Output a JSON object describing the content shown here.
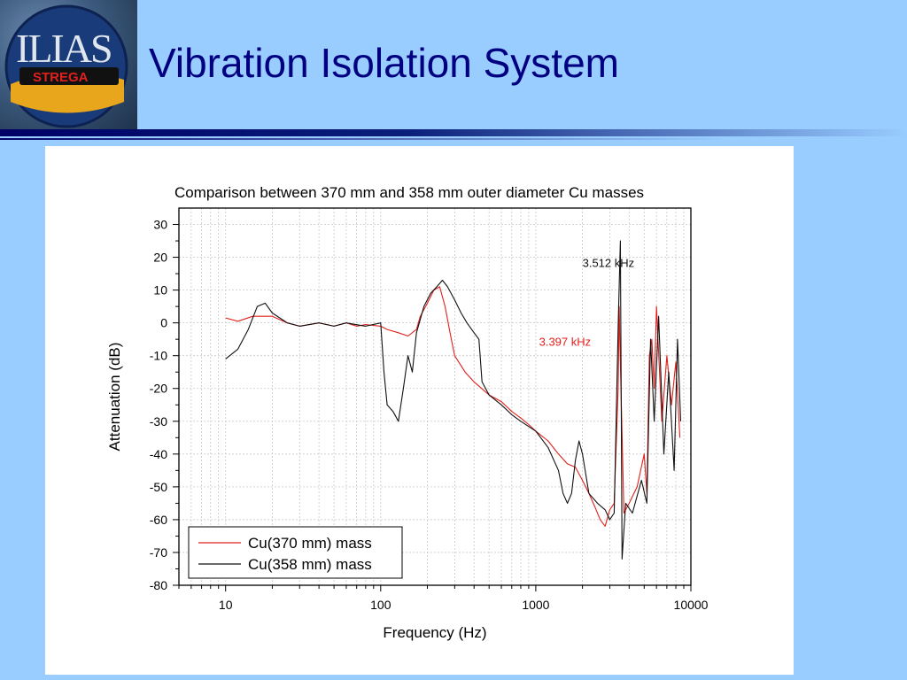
{
  "logo": {
    "text_main": "ILIAS",
    "text_sub": "STREGA"
  },
  "slide": {
    "title": "Vibration Isolation System"
  },
  "colors": {
    "background": "#99CCFF",
    "title": "#000080",
    "series_red": "#e0201c",
    "series_black": "#111111"
  },
  "chart_data": {
    "type": "line",
    "title": "Comparison between 370 mm and 358 mm outer diameter Cu masses",
    "xlabel": "Frequency (Hz)",
    "ylabel": "Attenuation (dB)",
    "xscale": "log",
    "xlim": [
      5,
      10000
    ],
    "ylim": [
      -80,
      35
    ],
    "grid": true,
    "legend_position": "bottom-left",
    "x_ticks": [
      "10",
      "100",
      "1000",
      "10000"
    ],
    "y_ticks": [
      "30",
      "20",
      "10",
      "0",
      "-10",
      "-20",
      "-30",
      "-40",
      "-50",
      "-60",
      "-70",
      "-80"
    ],
    "annotations": [
      {
        "text": "3.512 kHz",
        "color": "#111111",
        "x": 2000,
        "y": 17
      },
      {
        "text": "3.397 kHz",
        "color": "#e0201c",
        "x": 1050,
        "y": -7
      }
    ],
    "series": [
      {
        "name": "Cu(370 mm) mass",
        "color": "#e0201c",
        "points": [
          [
            10,
            1.5
          ],
          [
            12,
            0.5
          ],
          [
            15,
            2
          ],
          [
            20,
            2
          ],
          [
            25,
            0
          ],
          [
            30,
            -1
          ],
          [
            40,
            0
          ],
          [
            50,
            -1
          ],
          [
            60,
            0
          ],
          [
            70,
            -1
          ],
          [
            80,
            -0.5
          ],
          [
            100,
            -1
          ],
          [
            110,
            -2
          ],
          [
            130,
            -3
          ],
          [
            150,
            -4
          ],
          [
            170,
            -2
          ],
          [
            180,
            2
          ],
          [
            200,
            6
          ],
          [
            220,
            10
          ],
          [
            240,
            11
          ],
          [
            260,
            5
          ],
          [
            280,
            -3
          ],
          [
            300,
            -10
          ],
          [
            350,
            -15
          ],
          [
            400,
            -18
          ],
          [
            500,
            -22
          ],
          [
            600,
            -24
          ],
          [
            700,
            -27
          ],
          [
            800,
            -29
          ],
          [
            900,
            -31
          ],
          [
            1000,
            -33
          ],
          [
            1200,
            -36
          ],
          [
            1400,
            -40
          ],
          [
            1600,
            -43
          ],
          [
            1800,
            -44
          ],
          [
            2000,
            -48
          ],
          [
            2200,
            -52
          ],
          [
            2400,
            -56
          ],
          [
            2600,
            -60
          ],
          [
            2800,
            -62
          ],
          [
            3000,
            -57
          ],
          [
            3200,
            -55
          ],
          [
            3397,
            -20
          ],
          [
            3450,
            5
          ],
          [
            3500,
            -10
          ],
          [
            3700,
            -58
          ],
          [
            4000,
            -55
          ],
          [
            4500,
            -50
          ],
          [
            5000,
            -40
          ],
          [
            5200,
            -52
          ],
          [
            5400,
            -10
          ],
          [
            5600,
            -5
          ],
          [
            5800,
            -20
          ],
          [
            6000,
            5
          ],
          [
            6500,
            -30
          ],
          [
            7000,
            -10
          ],
          [
            7500,
            -25
          ],
          [
            8000,
            -12
          ],
          [
            8500,
            -35
          ]
        ]
      },
      {
        "name": "Cu(358 mm) mass",
        "color": "#111111",
        "points": [
          [
            10,
            -11
          ],
          [
            12,
            -8
          ],
          [
            14,
            -2
          ],
          [
            16,
            5
          ],
          [
            18,
            6
          ],
          [
            20,
            3
          ],
          [
            25,
            0
          ],
          [
            30,
            -1
          ],
          [
            40,
            0
          ],
          [
            50,
            -1
          ],
          [
            60,
            0
          ],
          [
            80,
            -1
          ],
          [
            100,
            0
          ],
          [
            105,
            -15
          ],
          [
            110,
            -25
          ],
          [
            120,
            -27
          ],
          [
            130,
            -30
          ],
          [
            140,
            -20
          ],
          [
            150,
            -10
          ],
          [
            160,
            -15
          ],
          [
            170,
            -3
          ],
          [
            190,
            5
          ],
          [
            210,
            9
          ],
          [
            230,
            11
          ],
          [
            250,
            13
          ],
          [
            270,
            11
          ],
          [
            300,
            7
          ],
          [
            330,
            3
          ],
          [
            360,
            0
          ],
          [
            400,
            -3
          ],
          [
            430,
            -5
          ],
          [
            450,
            -18
          ],
          [
            500,
            -22
          ],
          [
            600,
            -25
          ],
          [
            700,
            -28
          ],
          [
            800,
            -30
          ],
          [
            1000,
            -33
          ],
          [
            1200,
            -38
          ],
          [
            1400,
            -45
          ],
          [
            1500,
            -52
          ],
          [
            1600,
            -55
          ],
          [
            1700,
            -52
          ],
          [
            1800,
            -42
          ],
          [
            1900,
            -36
          ],
          [
            2000,
            -40
          ],
          [
            2200,
            -52
          ],
          [
            2500,
            -55
          ],
          [
            2800,
            -57
          ],
          [
            3000,
            -60
          ],
          [
            3200,
            -58
          ],
          [
            3400,
            0
          ],
          [
            3512,
            25
          ],
          [
            3600,
            -72
          ],
          [
            3800,
            -55
          ],
          [
            4200,
            -58
          ],
          [
            4800,
            -48
          ],
          [
            5200,
            -55
          ],
          [
            5500,
            -5
          ],
          [
            5800,
            -30
          ],
          [
            6200,
            2
          ],
          [
            6700,
            -40
          ],
          [
            7200,
            -15
          ],
          [
            7800,
            -45
          ],
          [
            8200,
            -5
          ],
          [
            8600,
            -30
          ]
        ]
      }
    ]
  }
}
